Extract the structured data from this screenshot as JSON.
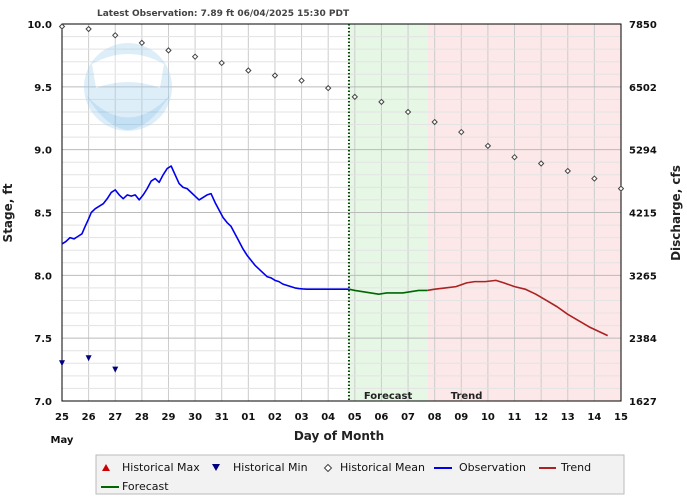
{
  "header": {
    "latest_observation": "Latest Observation: 7.89 ft 06/04/2025 15:30 PDT"
  },
  "logo_text": "NOAA",
  "colors": {
    "observation": "#0000ee",
    "forecast": "#006600",
    "trend": "#aa2222",
    "forecast_bg": "#e6f7e6",
    "trend_bg": "#fce8e8",
    "historical_max": "#cc0000",
    "historical_min": "#000080",
    "historical_mean": "#444444"
  },
  "chart_data": {
    "type": "line",
    "title": "",
    "xlabel": "Day of Month",
    "ylabel": "Stage, ft",
    "y2label": "Discharge, cfs",
    "x_tick_labels": [
      "25",
      "26",
      "27",
      "28",
      "29",
      "30",
      "31",
      "01",
      "02",
      "03",
      "04",
      "05",
      "06",
      "07",
      "08",
      "09",
      "10",
      "11",
      "12",
      "13",
      "14",
      "15"
    ],
    "x_month_label": "May",
    "x_range_days": [
      0,
      21
    ],
    "ylim": [
      7.0,
      10.0
    ],
    "y_ticks": [
      7.0,
      7.5,
      8.0,
      8.5,
      9.0,
      9.5,
      10.0
    ],
    "y2_ticks": [
      1627,
      2384,
      3265,
      4215,
      5294,
      6502,
      7850
    ],
    "grid": true,
    "forecast_start_day": 10.78,
    "forecast_region": [
      10.78,
      13.72
    ],
    "trend_region": [
      13.72,
      21
    ],
    "region_labels": {
      "forecast": "Forecast",
      "trend": "Trend"
    },
    "series": [
      {
        "name": "Observation",
        "kind": "line",
        "x": [
          0,
          0.15,
          0.3,
          0.45,
          0.6,
          0.75,
          0.85,
          1.0,
          1.1,
          1.25,
          1.4,
          1.55,
          1.7,
          1.85,
          2.0,
          2.15,
          2.3,
          2.45,
          2.6,
          2.75,
          2.9,
          3.05,
          3.2,
          3.35,
          3.5,
          3.65,
          3.8,
          3.95,
          4.1,
          4.25,
          4.4,
          4.55,
          4.7,
          4.85,
          5.0,
          5.15,
          5.3,
          5.45,
          5.6,
          5.75,
          5.9,
          6.05,
          6.2,
          6.35,
          6.5,
          6.65,
          6.8,
          6.95,
          7.1,
          7.25,
          7.4,
          7.55,
          7.7,
          7.85,
          8.0,
          8.15,
          8.3,
          8.45,
          8.6,
          8.75,
          8.9,
          9.05,
          9.2,
          9.35,
          9.5,
          9.65,
          9.8,
          9.95,
          10.1,
          10.25,
          10.4,
          10.55,
          10.7,
          10.78
        ],
        "values": [
          8.25,
          8.27,
          8.3,
          8.29,
          8.31,
          8.33,
          8.38,
          8.45,
          8.5,
          8.53,
          8.55,
          8.57,
          8.61,
          8.66,
          8.68,
          8.64,
          8.61,
          8.64,
          8.63,
          8.64,
          8.6,
          8.64,
          8.69,
          8.75,
          8.77,
          8.74,
          8.8,
          8.85,
          8.87,
          8.8,
          8.73,
          8.7,
          8.69,
          8.66,
          8.63,
          8.6,
          8.62,
          8.64,
          8.65,
          8.58,
          8.52,
          8.46,
          8.42,
          8.39,
          8.33,
          8.27,
          8.21,
          8.16,
          8.12,
          8.08,
          8.05,
          8.02,
          7.99,
          7.98,
          7.96,
          7.95,
          7.93,
          7.92,
          7.91,
          7.9,
          7.895,
          7.892,
          7.89,
          7.89,
          7.89,
          7.89,
          7.89,
          7.89,
          7.89,
          7.89,
          7.89,
          7.89,
          7.89,
          7.89
        ]
      },
      {
        "name": "Forecast",
        "kind": "line",
        "x": [
          10.78,
          11.0,
          11.3,
          11.6,
          11.9,
          12.2,
          12.5,
          12.8,
          13.1,
          13.4,
          13.72
        ],
        "values": [
          7.89,
          7.88,
          7.87,
          7.86,
          7.85,
          7.86,
          7.86,
          7.86,
          7.87,
          7.88,
          7.88
        ]
      },
      {
        "name": "Trend",
        "kind": "line",
        "x": [
          13.72,
          14.0,
          14.4,
          14.8,
          15.2,
          15.5,
          15.9,
          16.3,
          16.6,
          17.0,
          17.4,
          17.8,
          18.2,
          18.6,
          19.0,
          19.4,
          19.8,
          20.2,
          20.5
        ],
        "values": [
          7.88,
          7.89,
          7.9,
          7.91,
          7.94,
          7.95,
          7.95,
          7.96,
          7.94,
          7.91,
          7.89,
          7.85,
          7.8,
          7.75,
          7.69,
          7.64,
          7.59,
          7.55,
          7.52
        ]
      },
      {
        "name": "Historical Mean",
        "kind": "points",
        "x": [
          0,
          1,
          2,
          3,
          4,
          5,
          6,
          7,
          8,
          9,
          10,
          11,
          12,
          13,
          14,
          15,
          16,
          17,
          18,
          19,
          20,
          21
        ],
        "values": [
          9.98,
          9.96,
          9.91,
          9.85,
          9.79,
          9.74,
          9.69,
          9.63,
          9.59,
          9.55,
          9.49,
          9.42,
          9.38,
          9.3,
          9.22,
          9.14,
          9.03,
          8.94,
          8.89,
          8.83,
          8.77,
          8.69
        ]
      },
      {
        "name": "Historical Min",
        "kind": "points",
        "x": [
          0,
          1,
          2
        ],
        "values": [
          7.3,
          7.34,
          7.25
        ]
      }
    ],
    "legend": {
      "placement": "bottom",
      "items": [
        "Historical Max",
        "Historical Min",
        "Historical Mean",
        "Observation",
        "Trend",
        "Forecast"
      ]
    }
  }
}
